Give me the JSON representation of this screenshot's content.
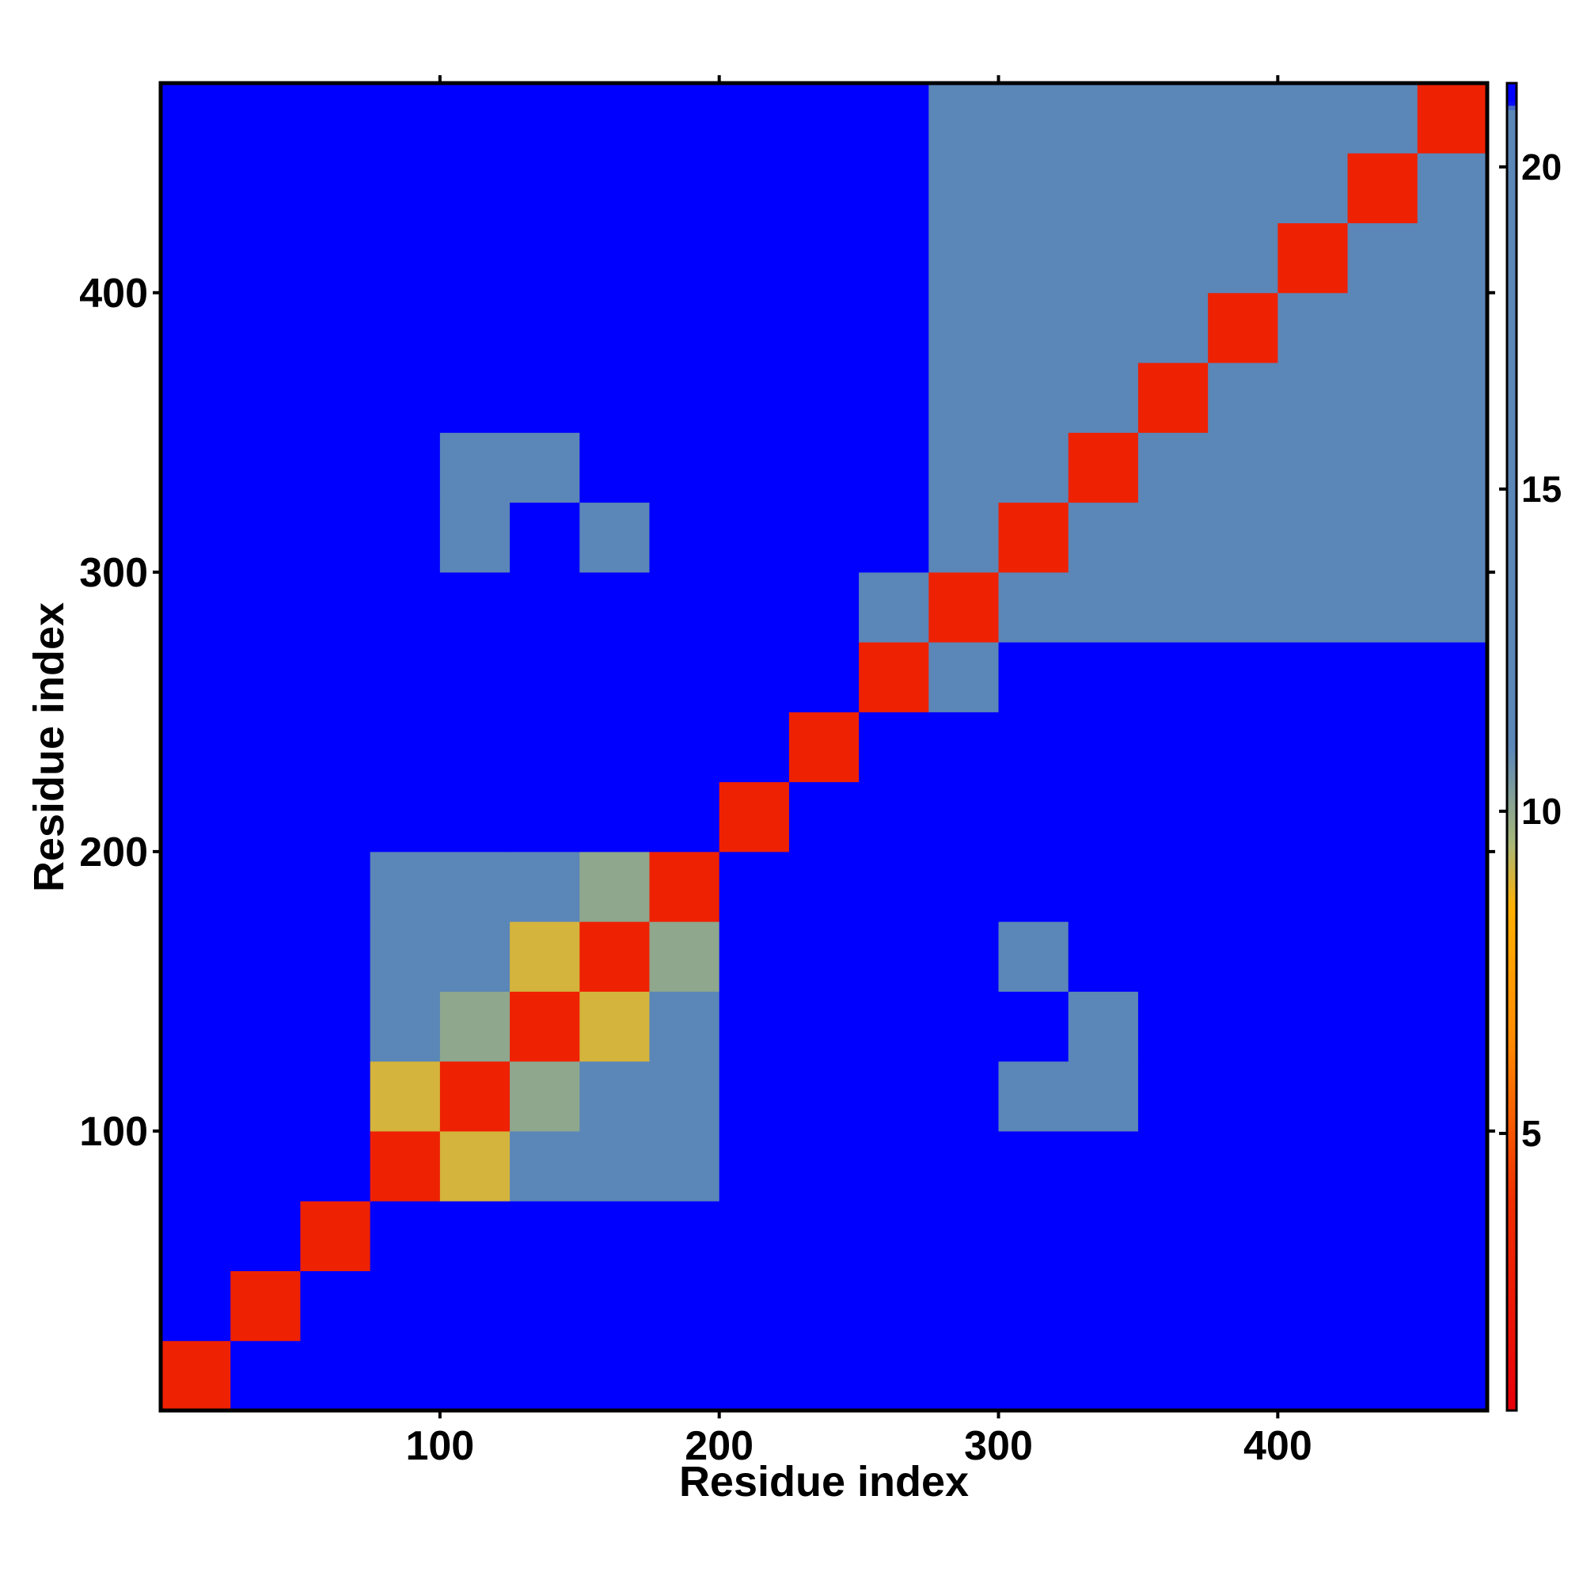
{
  "chart_data": {
    "type": "heatmap",
    "xlabel": "Residue index",
    "ylabel": "Residue index",
    "xlim": [
      0,
      475
    ],
    "ylim": [
      0,
      475
    ],
    "xticks": [
      100,
      200,
      300,
      400
    ],
    "yticks": [
      100,
      200,
      300,
      400
    ],
    "bins": [
      0,
      25,
      50,
      75,
      100,
      125,
      150,
      175,
      200,
      225,
      250,
      275,
      300,
      325,
      350,
      375,
      400,
      425,
      450,
      475
    ],
    "z": [
      [
        3,
        22,
        22,
        22,
        22,
        22,
        22,
        22,
        22,
        22,
        22,
        22,
        22,
        22,
        22,
        22,
        22,
        22,
        22
      ],
      [
        22,
        3,
        22,
        22,
        22,
        22,
        22,
        22,
        22,
        22,
        22,
        22,
        22,
        22,
        22,
        22,
        22,
        22,
        22
      ],
      [
        22,
        22,
        3,
        22,
        22,
        22,
        22,
        22,
        22,
        22,
        22,
        22,
        22,
        22,
        22,
        22,
        22,
        22,
        22
      ],
      [
        22,
        22,
        22,
        3,
        9,
        13,
        12,
        14,
        22,
        22,
        22,
        22,
        22,
        22,
        22,
        22,
        22,
        22,
        22
      ],
      [
        22,
        22,
        22,
        9,
        3,
        10,
        13,
        14,
        22,
        22,
        22,
        22,
        19,
        19,
        22,
        22,
        22,
        22,
        22
      ],
      [
        22,
        22,
        22,
        13,
        10,
        3,
        9,
        12,
        22,
        22,
        22,
        22,
        22,
        19,
        22,
        22,
        22,
        22,
        22
      ],
      [
        22,
        22,
        22,
        12,
        13,
        9,
        3,
        10,
        22,
        22,
        22,
        22,
        19,
        22,
        22,
        22,
        22,
        22,
        22
      ],
      [
        22,
        22,
        22,
        14,
        14,
        12,
        10,
        3,
        22,
        22,
        22,
        22,
        22,
        22,
        22,
        22,
        22,
        22,
        22
      ],
      [
        22,
        22,
        22,
        22,
        22,
        22,
        22,
        22,
        3,
        22,
        22,
        22,
        22,
        22,
        22,
        22,
        22,
        22,
        22
      ],
      [
        22,
        22,
        22,
        22,
        22,
        22,
        22,
        22,
        22,
        3,
        22,
        22,
        22,
        22,
        22,
        22,
        22,
        22,
        22
      ],
      [
        22,
        22,
        22,
        22,
        22,
        22,
        22,
        22,
        22,
        22,
        3,
        15,
        22,
        22,
        22,
        22,
        22,
        22,
        22
      ],
      [
        22,
        22,
        22,
        22,
        22,
        22,
        22,
        22,
        22,
        22,
        15,
        3,
        12,
        13,
        15,
        15,
        14,
        15,
        16
      ],
      [
        22,
        22,
        22,
        22,
        19,
        22,
        19,
        22,
        22,
        22,
        22,
        12,
        3,
        12,
        13,
        15,
        15,
        14,
        15
      ],
      [
        22,
        22,
        22,
        22,
        19,
        19,
        22,
        22,
        22,
        22,
        22,
        13,
        12,
        3,
        12,
        13,
        15,
        15,
        15
      ],
      [
        22,
        22,
        22,
        22,
        22,
        22,
        22,
        22,
        22,
        22,
        22,
        15,
        13,
        12,
        3,
        12,
        13,
        15,
        14
      ],
      [
        22,
        22,
        22,
        22,
        22,
        22,
        22,
        22,
        22,
        22,
        22,
        15,
        15,
        13,
        12,
        3,
        12,
        13,
        15
      ],
      [
        22,
        22,
        22,
        22,
        22,
        22,
        22,
        22,
        22,
        22,
        22,
        14,
        15,
        15,
        13,
        12,
        3,
        12,
        13
      ],
      [
        22,
        22,
        22,
        22,
        22,
        22,
        22,
        22,
        22,
        22,
        22,
        15,
        14,
        15,
        15,
        13,
        12,
        3,
        12
      ],
      [
        22,
        22,
        22,
        22,
        22,
        22,
        22,
        22,
        22,
        22,
        22,
        16,
        15,
        15,
        14,
        15,
        13,
        12,
        3
      ]
    ],
    "clim": [
      0.7,
      21.3
    ],
    "cticks": [
      5,
      10,
      15,
      20
    ],
    "colorscale": [
      [
        0.7,
        "#e8000b"
      ],
      [
        4,
        "#f03000"
      ],
      [
        6.5,
        "#ff8c00"
      ],
      [
        8.5,
        "#ffb000"
      ],
      [
        9.5,
        "#a8b878"
      ],
      [
        11,
        "#5b86b8"
      ],
      [
        20.9,
        "#5b86b8"
      ],
      [
        21,
        "#0000ff"
      ]
    ]
  }
}
